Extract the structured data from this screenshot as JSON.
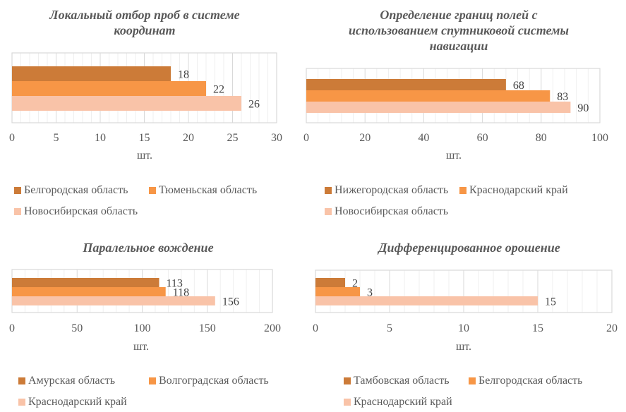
{
  "colors": {
    "series1": "#CC7B38",
    "series2": "#F79646",
    "series3": "#F9C3A8"
  },
  "chart_data": [
    {
      "type": "bar",
      "orientation": "horizontal",
      "title": "Локальный отбор проб в системе координат",
      "title_lines": [
        "Локальный отбор проб в системе",
        "координат"
      ],
      "xlabel": "шт.",
      "ylabel": "",
      "xlim": [
        0,
        30
      ],
      "major_step": 5,
      "minor_step": 1,
      "ticks": [
        "0",
        "5",
        "10",
        "15",
        "20",
        "25",
        "30"
      ],
      "grid": true,
      "legend": "bottom",
      "series": [
        {
          "name": "Белгородская область",
          "values": [
            18
          ]
        },
        {
          "name": "Тюменьская область",
          "values": [
            22
          ]
        },
        {
          "name": "Новосибирская область",
          "values": [
            26
          ]
        }
      ]
    },
    {
      "type": "bar",
      "orientation": "horizontal",
      "title": "Определение границ полей с использованием спутниковой системы навигации",
      "title_lines": [
        "Определение границ полей с",
        "использованием спутниковой системы",
        "навигации"
      ],
      "xlabel": "шт.",
      "ylabel": "",
      "xlim": [
        0,
        100
      ],
      "major_step": 20,
      "minor_step": 4,
      "ticks": [
        "0",
        "20",
        "40",
        "60",
        "80",
        "100"
      ],
      "grid": true,
      "legend": "bottom",
      "series": [
        {
          "name": "Нижегородская область",
          "values": [
            68
          ]
        },
        {
          "name": "Краснодарский край",
          "values": [
            83
          ]
        },
        {
          "name": "Новосибирская область",
          "values": [
            90
          ]
        }
      ]
    },
    {
      "type": "bar",
      "orientation": "horizontal",
      "title": "Паралельное вождение",
      "title_lines": [
        "Паралельное вождение"
      ],
      "xlabel": "шт.",
      "ylabel": "",
      "xlim": [
        0,
        200
      ],
      "major_step": 50,
      "minor_step": 10,
      "ticks": [
        "0",
        "50",
        "100",
        "150",
        "200"
      ],
      "grid": true,
      "legend": "bottom",
      "series": [
        {
          "name": "Амурская область",
          "values": [
            113
          ]
        },
        {
          "name": "Волгоградская область",
          "values": [
            118
          ]
        },
        {
          "name": "Краснодарский край",
          "values": [
            156
          ]
        }
      ]
    },
    {
      "type": "bar",
      "orientation": "horizontal",
      "title": "Дифференцированное орошение",
      "title_lines": [
        "Дифференцированное орошение"
      ],
      "xlabel": "шт.",
      "ylabel": "",
      "xlim": [
        0,
        20
      ],
      "major_step": 5,
      "minor_step": 1,
      "ticks": [
        "0",
        "5",
        "10",
        "15",
        "20"
      ],
      "grid": true,
      "legend": "bottom",
      "series": [
        {
          "name": "Тамбовская область",
          "values": [
            2
          ]
        },
        {
          "name": "Белгородская область",
          "values": [
            3
          ]
        },
        {
          "name": "Краснодарский край",
          "values": [
            15
          ]
        }
      ]
    }
  ]
}
